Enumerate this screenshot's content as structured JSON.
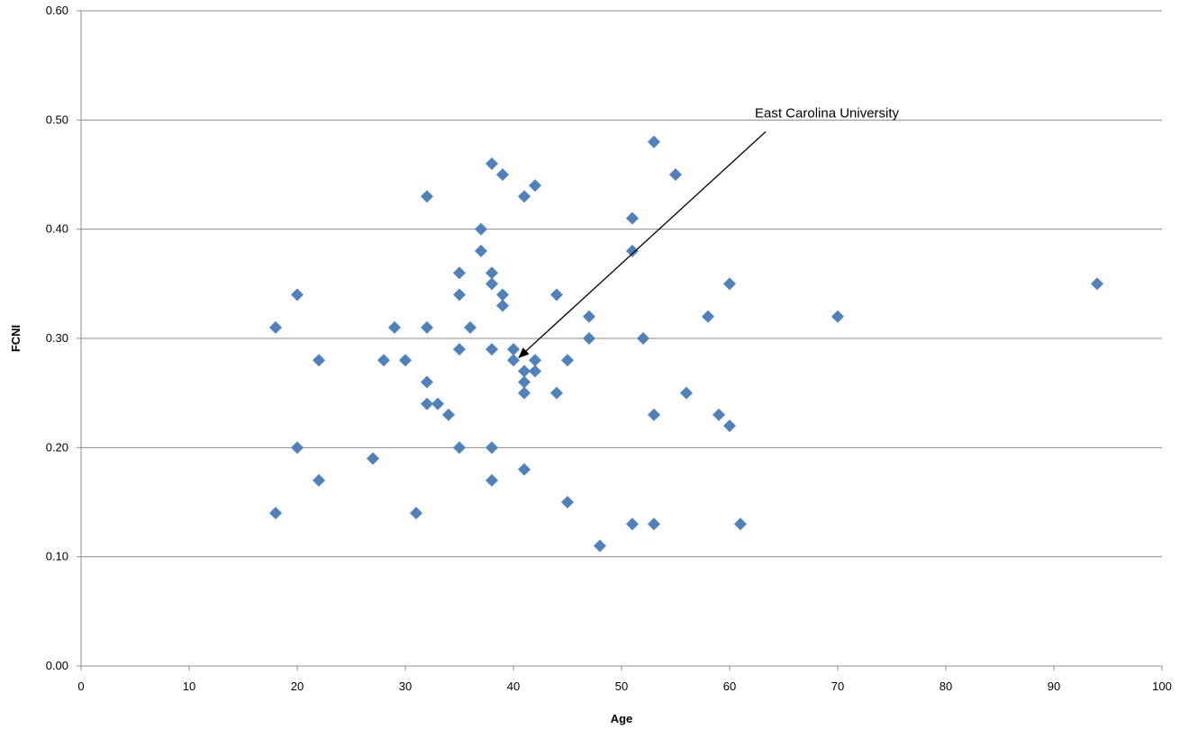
{
  "chart_data": {
    "type": "scatter",
    "xlabel": "Age",
    "ylabel": "FCNI",
    "xlim": [
      0,
      100
    ],
    "ylim": [
      0,
      0.6
    ],
    "x_ticks": [
      0,
      10,
      20,
      30,
      40,
      50,
      60,
      70,
      80,
      90,
      100
    ],
    "x_tick_labels": [
      "0",
      "10",
      "20",
      "30",
      "40",
      "50",
      "60",
      "70",
      "80",
      "90",
      "100"
    ],
    "y_ticks": [
      0,
      0.1,
      0.2,
      0.3,
      0.4,
      0.5,
      0.6
    ],
    "y_tick_labels": [
      "0.00",
      "0.10",
      "0.20",
      "0.30",
      "0.40",
      "0.50",
      "0.60"
    ],
    "grid": "horizontal",
    "marker": "diamond",
    "marker_color": "#4f81bd",
    "points": [
      {
        "x": 18,
        "y": 0.31
      },
      {
        "x": 18,
        "y": 0.14
      },
      {
        "x": 20,
        "y": 0.34
      },
      {
        "x": 20,
        "y": 0.2
      },
      {
        "x": 22,
        "y": 0.28
      },
      {
        "x": 22,
        "y": 0.17
      },
      {
        "x": 27,
        "y": 0.19
      },
      {
        "x": 28,
        "y": 0.28
      },
      {
        "x": 29,
        "y": 0.31
      },
      {
        "x": 30,
        "y": 0.28
      },
      {
        "x": 31,
        "y": 0.14
      },
      {
        "x": 32,
        "y": 0.43
      },
      {
        "x": 32,
        "y": 0.31
      },
      {
        "x": 32,
        "y": 0.26
      },
      {
        "x": 32,
        "y": 0.24
      },
      {
        "x": 33,
        "y": 0.24
      },
      {
        "x": 34,
        "y": 0.23
      },
      {
        "x": 35,
        "y": 0.36
      },
      {
        "x": 35,
        "y": 0.34
      },
      {
        "x": 35,
        "y": 0.29
      },
      {
        "x": 35,
        "y": 0.2
      },
      {
        "x": 36,
        "y": 0.31
      },
      {
        "x": 37,
        "y": 0.4
      },
      {
        "x": 37,
        "y": 0.38
      },
      {
        "x": 38,
        "y": 0.46
      },
      {
        "x": 38,
        "y": 0.36
      },
      {
        "x": 38,
        "y": 0.35
      },
      {
        "x": 38,
        "y": 0.29
      },
      {
        "x": 38,
        "y": 0.2
      },
      {
        "x": 38,
        "y": 0.17
      },
      {
        "x": 39,
        "y": 0.45
      },
      {
        "x": 39,
        "y": 0.34
      },
      {
        "x": 39,
        "y": 0.33
      },
      {
        "x": 40,
        "y": 0.29
      },
      {
        "x": 40,
        "y": 0.28
      },
      {
        "x": 41,
        "y": 0.43
      },
      {
        "x": 41,
        "y": 0.27
      },
      {
        "x": 41,
        "y": 0.26
      },
      {
        "x": 41,
        "y": 0.25
      },
      {
        "x": 41,
        "y": 0.18
      },
      {
        "x": 42,
        "y": 0.44
      },
      {
        "x": 42,
        "y": 0.28
      },
      {
        "x": 42,
        "y": 0.27
      },
      {
        "x": 44,
        "y": 0.34
      },
      {
        "x": 44,
        "y": 0.25
      },
      {
        "x": 45,
        "y": 0.28
      },
      {
        "x": 45,
        "y": 0.15
      },
      {
        "x": 47,
        "y": 0.32
      },
      {
        "x": 47,
        "y": 0.3
      },
      {
        "x": 48,
        "y": 0.11
      },
      {
        "x": 51,
        "y": 0.41
      },
      {
        "x": 51,
        "y": 0.38
      },
      {
        "x": 51,
        "y": 0.13
      },
      {
        "x": 52,
        "y": 0.3
      },
      {
        "x": 53,
        "y": 0.48
      },
      {
        "x": 53,
        "y": 0.23
      },
      {
        "x": 53,
        "y": 0.13
      },
      {
        "x": 55,
        "y": 0.45
      },
      {
        "x": 56,
        "y": 0.25
      },
      {
        "x": 58,
        "y": 0.32
      },
      {
        "x": 59,
        "y": 0.23
      },
      {
        "x": 60,
        "y": 0.35
      },
      {
        "x": 60,
        "y": 0.22
      },
      {
        "x": 61,
        "y": 0.13
      },
      {
        "x": 70,
        "y": 0.32
      },
      {
        "x": 94,
        "y": 0.35
      }
    ],
    "annotations": [
      {
        "text": "East Carolina University",
        "target": {
          "x": 40,
          "y": 0.28
        },
        "text_anchor": {
          "x": 63,
          "y": 0.5
        }
      }
    ]
  }
}
